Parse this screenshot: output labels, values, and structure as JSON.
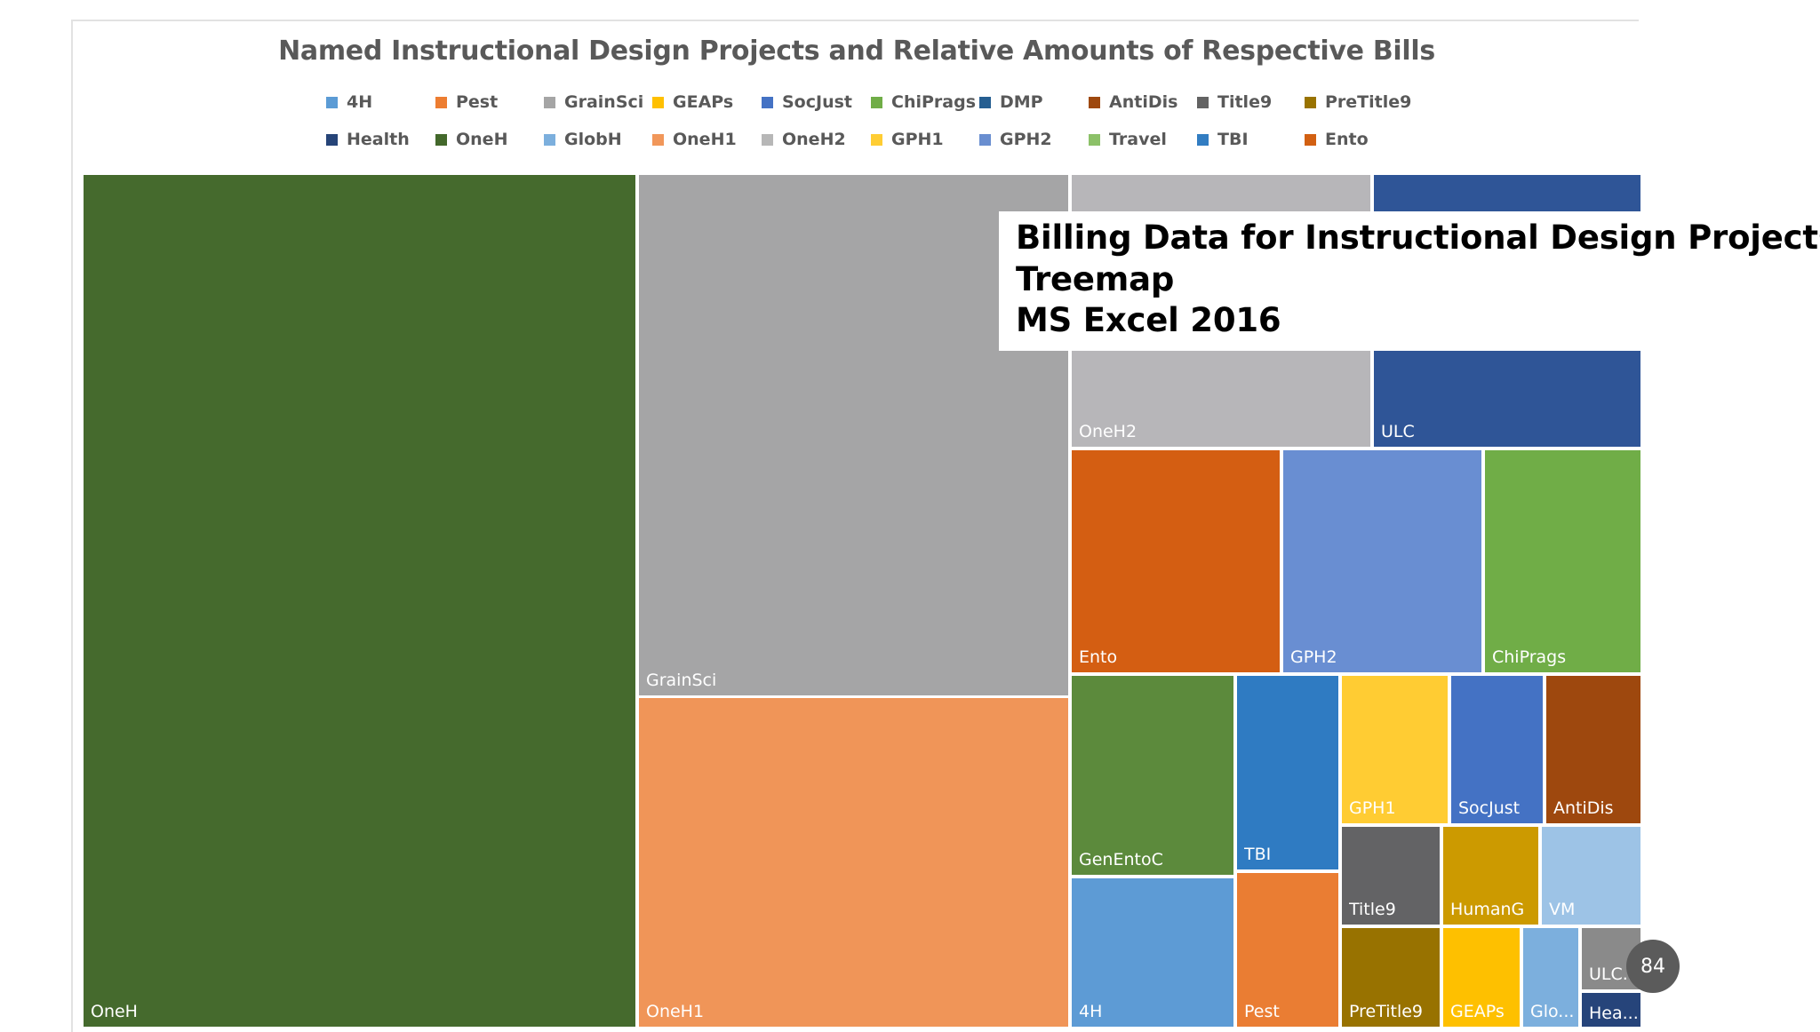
{
  "slide": {
    "overlay_lines": [
      "Billing Data for Instructional Design Projects",
      "Treemap",
      "MS Excel 2016"
    ],
    "page_number": "84"
  },
  "chart_data": {
    "type": "treemap",
    "title": "Named Instructional Design Projects and Relative Amounts of Respective Bills",
    "legend_position": "top",
    "legend": [
      {
        "name": "4H",
        "color": "#5b9bd5"
      },
      {
        "name": "Pest",
        "color": "#ed7d31"
      },
      {
        "name": "GrainSci",
        "color": "#a5a5a5"
      },
      {
        "name": "GEAPs",
        "color": "#ffc000"
      },
      {
        "name": "SocJust",
        "color": "#4472c4"
      },
      {
        "name": "ChiPrags",
        "color": "#70ad47"
      },
      {
        "name": "DMP",
        "color": "#255e91"
      },
      {
        "name": "AntiDis",
        "color": "#9e480e"
      },
      {
        "name": "Title9",
        "color": "#636363"
      },
      {
        "name": "PreTitle9",
        "color": "#997300"
      },
      {
        "name": "Health",
        "color": "#264478"
      },
      {
        "name": "OneH",
        "color": "#43682b"
      },
      {
        "name": "GlobH",
        "color": "#7cafdd"
      },
      {
        "name": "OneH1",
        "color": "#f1975a"
      },
      {
        "name": "OneH2",
        "color": "#b7b7b7"
      },
      {
        "name": "GPH1",
        "color": "#ffcd33"
      },
      {
        "name": "GPH2",
        "color": "#698ed0"
      },
      {
        "name": "Travel",
        "color": "#8cc168"
      },
      {
        "name": "TBI",
        "color": "#327dc2"
      },
      {
        "name": "Ento",
        "color": "#d26012"
      }
    ],
    "tiles": [
      {
        "name": "OneH",
        "label": "OneH",
        "color": "#456a2d",
        "value": 32.8
      },
      {
        "name": "GrainSci",
        "label": "GrainSci",
        "color": "#a5a5a6",
        "value": 15.5
      },
      {
        "name": "OneH1",
        "label": "OneH1",
        "color": "#f09558",
        "value": 9.8
      },
      {
        "name": "OneH2",
        "label": "OneH2",
        "color": "#b7b6b9",
        "value": 4.3
      },
      {
        "name": "ULC",
        "label": "ULC",
        "color": "#2f5597",
        "value": 4.3
      },
      {
        "name": "Ento",
        "label": "Ento",
        "color": "#d45e12",
        "value": 3.2
      },
      {
        "name": "GPH2",
        "label": "GPH2",
        "color": "#698ed2",
        "value": 3.0
      },
      {
        "name": "ChiPrags",
        "label": "ChiPrags",
        "color": "#70ad47",
        "value": 2.3
      },
      {
        "name": "GenEntoC",
        "label": "GenEntoC",
        "color": "#5c8a3c",
        "value": 2.2
      },
      {
        "name": "4H",
        "label": "4H",
        "color": "#5d9bd5",
        "value": 1.8
      },
      {
        "name": "TBI",
        "label": "TBI",
        "color": "#2f7bc2",
        "value": 1.3
      },
      {
        "name": "Pest",
        "label": "Pest",
        "color": "#ea7d33",
        "value": 1.2
      },
      {
        "name": "GPH1",
        "label": "GPH1",
        "color": "#ffcc33",
        "value": 1.2
      },
      {
        "name": "SocJust",
        "label": "SocJust",
        "color": "#4472c4",
        "value": 1.1
      },
      {
        "name": "AntiDis",
        "label": "AntiDis",
        "color": "#9e480e",
        "value": 1.1
      },
      {
        "name": "Title9",
        "label": "Title9",
        "color": "#636365",
        "value": 0.9
      },
      {
        "name": "HumanG",
        "label": "HumanG",
        "color": "#cc9a00",
        "value": 0.9
      },
      {
        "name": "VM",
        "label": "VM",
        "color": "#9dc3e6",
        "value": 0.8
      },
      {
        "name": "PreTitle9",
        "label": "PreTitle9",
        "color": "#987200",
        "value": 0.9
      },
      {
        "name": "GEAPs",
        "label": "GEAPs",
        "color": "#fec000",
        "value": 0.7
      },
      {
        "name": "GlobH",
        "label": "Glo...",
        "color": "#7cafdd",
        "value": 0.5
      },
      {
        "name": "ULC2",
        "label": "ULC...",
        "color": "#8a8a8a",
        "value": 0.3
      },
      {
        "name": "Health",
        "label": "Hea...",
        "color": "#26447a",
        "value": 0.3
      }
    ]
  }
}
